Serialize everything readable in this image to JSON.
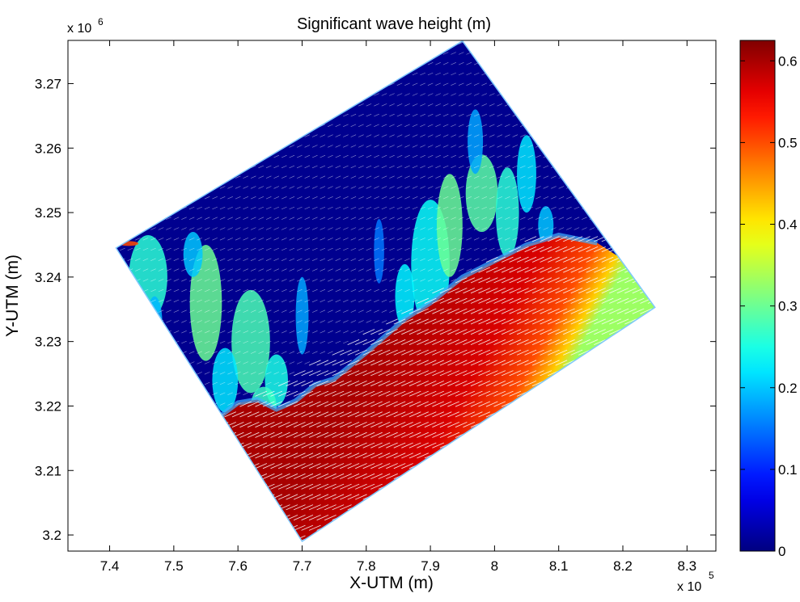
{
  "chart_data": {
    "type": "heatmap",
    "title": "Significant wave height (m)",
    "xlabel": "X-UTM (m)",
    "ylabel": "Y-UTM (m)",
    "x_multiplier": "x 10",
    "x_multiplier_exp": "5",
    "y_multiplier": "x 10",
    "y_multiplier_exp": "6",
    "xlim": [
      7.335,
      8.345
    ],
    "ylim": [
      3.1975,
      3.2767
    ],
    "x_ticks": [
      7.4,
      7.5,
      7.6,
      7.7,
      7.8,
      7.9,
      8.0,
      8.1,
      8.2,
      8.3
    ],
    "x_tick_labels": [
      "7.4",
      "7.5",
      "7.6",
      "7.7",
      "7.8",
      "7.9",
      "8",
      "8.1",
      "8.2",
      "8.3"
    ],
    "y_ticks": [
      3.2,
      3.21,
      3.22,
      3.23,
      3.24,
      3.25,
      3.26,
      3.27
    ],
    "y_tick_labels": [
      "3.2",
      "3.21",
      "3.22",
      "3.23",
      "3.24",
      "3.25",
      "3.26",
      "3.27"
    ],
    "colorbar": {
      "range": [
        0,
        0.625
      ],
      "ticks": [
        0,
        0.1,
        0.2,
        0.3,
        0.4,
        0.5,
        0.6
      ],
      "tick_labels": [
        "0",
        "0.1",
        "0.2",
        "0.3",
        "0.4",
        "0.5",
        "0.6"
      ],
      "colormap": "jet"
    },
    "domain_corners": [
      {
        "x": 7.41,
        "y": 3.2445
      },
      {
        "x": 7.95,
        "y": 3.2766
      },
      {
        "x": 8.25,
        "y": 3.2353
      },
      {
        "x": 7.7,
        "y": 3.199
      }
    ],
    "breaking_front": [
      {
        "x": 7.56,
        "y": 3.2175
      },
      {
        "x": 7.6,
        "y": 3.2205
      },
      {
        "x": 7.63,
        "y": 3.221
      },
      {
        "x": 7.66,
        "y": 3.2195
      },
      {
        "x": 7.69,
        "y": 3.2208
      },
      {
        "x": 7.72,
        "y": 3.2233
      },
      {
        "x": 7.75,
        "y": 3.2242
      },
      {
        "x": 7.8,
        "y": 3.2283
      },
      {
        "x": 7.86,
        "y": 3.2335
      },
      {
        "x": 7.9,
        "y": 3.236
      },
      {
        "x": 7.95,
        "y": 3.24
      },
      {
        "x": 8.0,
        "y": 3.2425
      },
      {
        "x": 8.05,
        "y": 3.245
      },
      {
        "x": 8.1,
        "y": 3.2465
      },
      {
        "x": 8.16,
        "y": 3.2453
      }
    ],
    "hs_offshore_m": 0.6,
    "hs_nearshore_m": 0.0
  }
}
